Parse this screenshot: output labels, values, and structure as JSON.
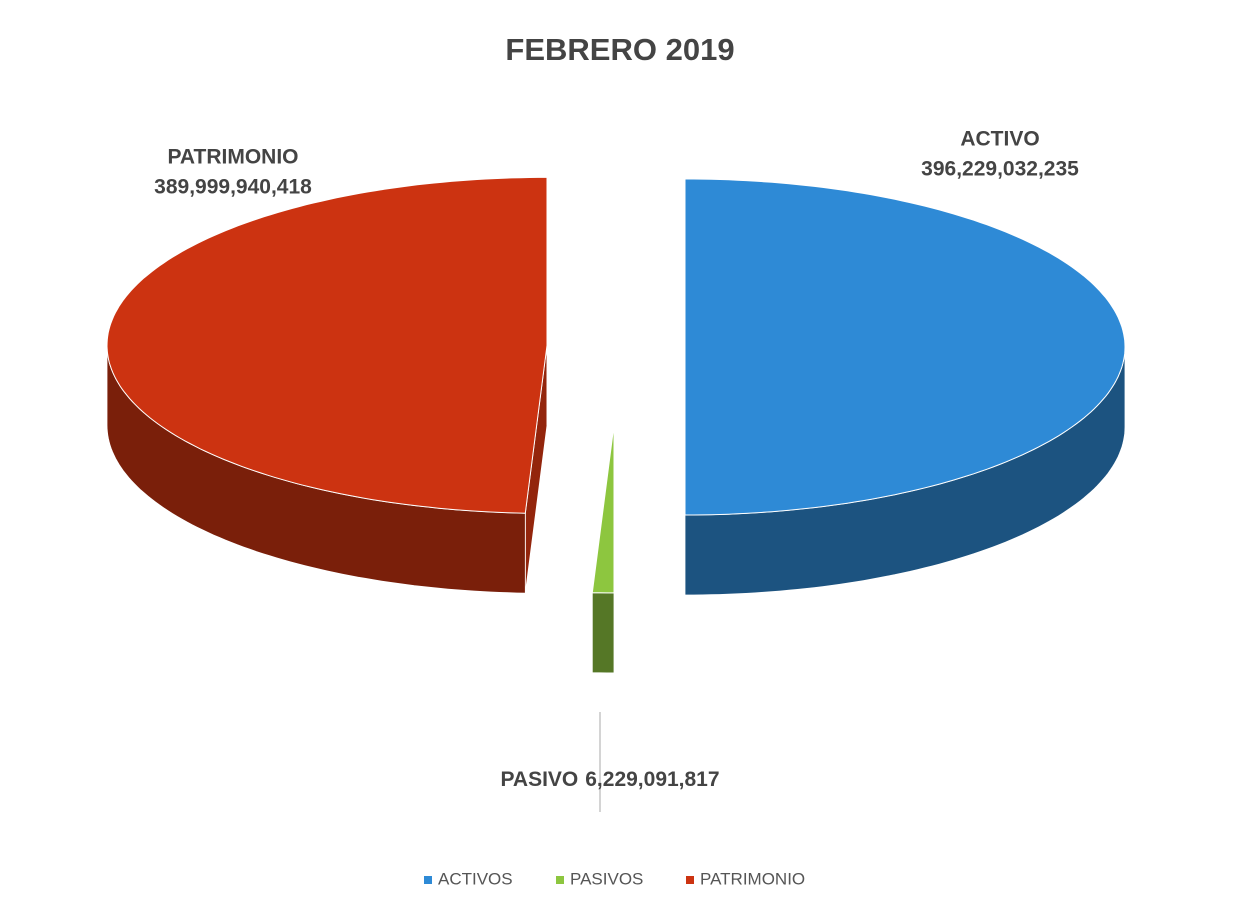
{
  "chart_data": {
    "type": "pie3d",
    "title": "FEBRERO 2019",
    "categories": [
      "ACTIVOS",
      "PASIVOS",
      "PATRIMONIO"
    ],
    "label_names": [
      "ACTIVO",
      "PASIVO",
      "PATRIMONIO"
    ],
    "values": [
      396229032235,
      6229091817,
      389999940418
    ],
    "value_labels": [
      "396,229,032,235",
      "6,229,091,817",
      "389,999,940,418"
    ],
    "colors": [
      "#2e8ad6",
      "#8dc63f",
      "#cc3311"
    ],
    "legend": "bottom",
    "exploded": true
  }
}
